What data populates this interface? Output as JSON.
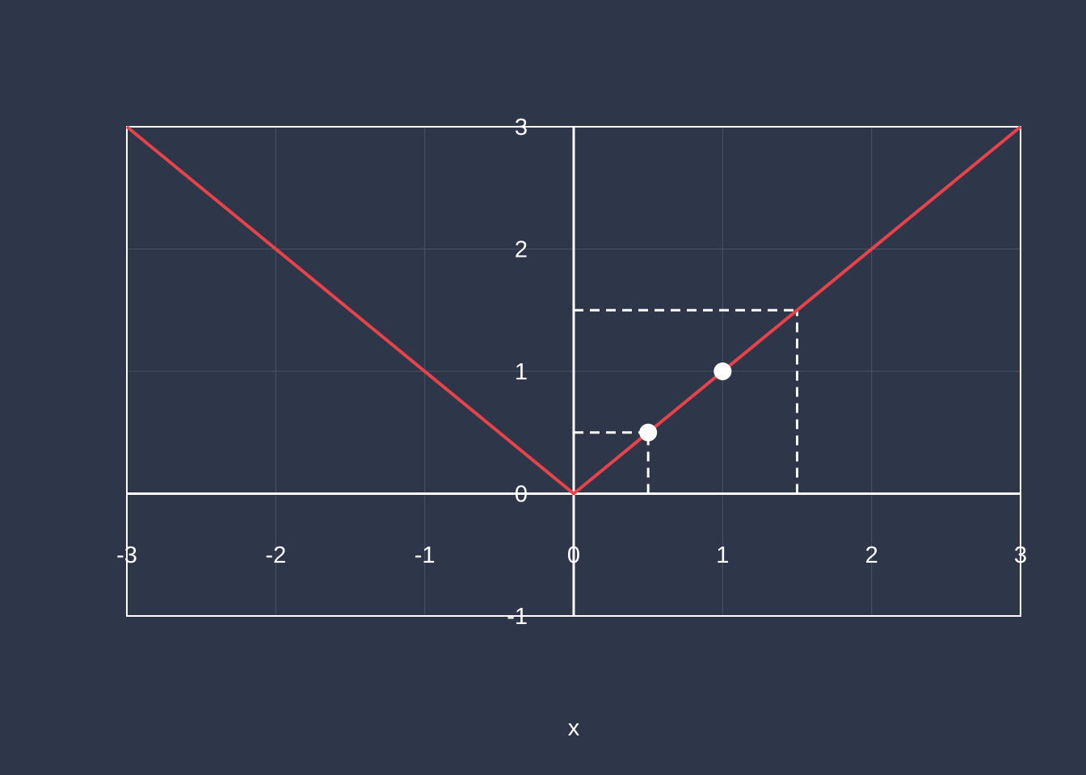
{
  "chart_data": {
    "type": "line",
    "title": "",
    "xlabel": "x",
    "ylabel": "",
    "xlim": [
      -3,
      3
    ],
    "ylim": [
      -1,
      3
    ],
    "x_ticks": [
      "-3",
      "-2",
      "-1",
      "0",
      "1",
      "2",
      "3"
    ],
    "y_ticks": [
      "-1",
      "0",
      "1",
      "2",
      "3"
    ],
    "grid": true,
    "legend": "none",
    "series": [
      {
        "x": [
          -3,
          0,
          3
        ],
        "y": [
          3,
          0,
          3
        ],
        "color": "#e8424a"
      }
    ],
    "points": [
      {
        "x": 0.5,
        "y": 0.5
      },
      {
        "x": 1,
        "y": 1
      }
    ],
    "guides": [
      {
        "x": 0.5,
        "y": 0.5
      },
      {
        "x": 1.5,
        "y": 1.5
      }
    ],
    "colors": {
      "background": "#2e3749",
      "line": "#e8424a",
      "axes": "#ffffff",
      "grid": "#4a5366",
      "points": "#ffffff"
    }
  }
}
